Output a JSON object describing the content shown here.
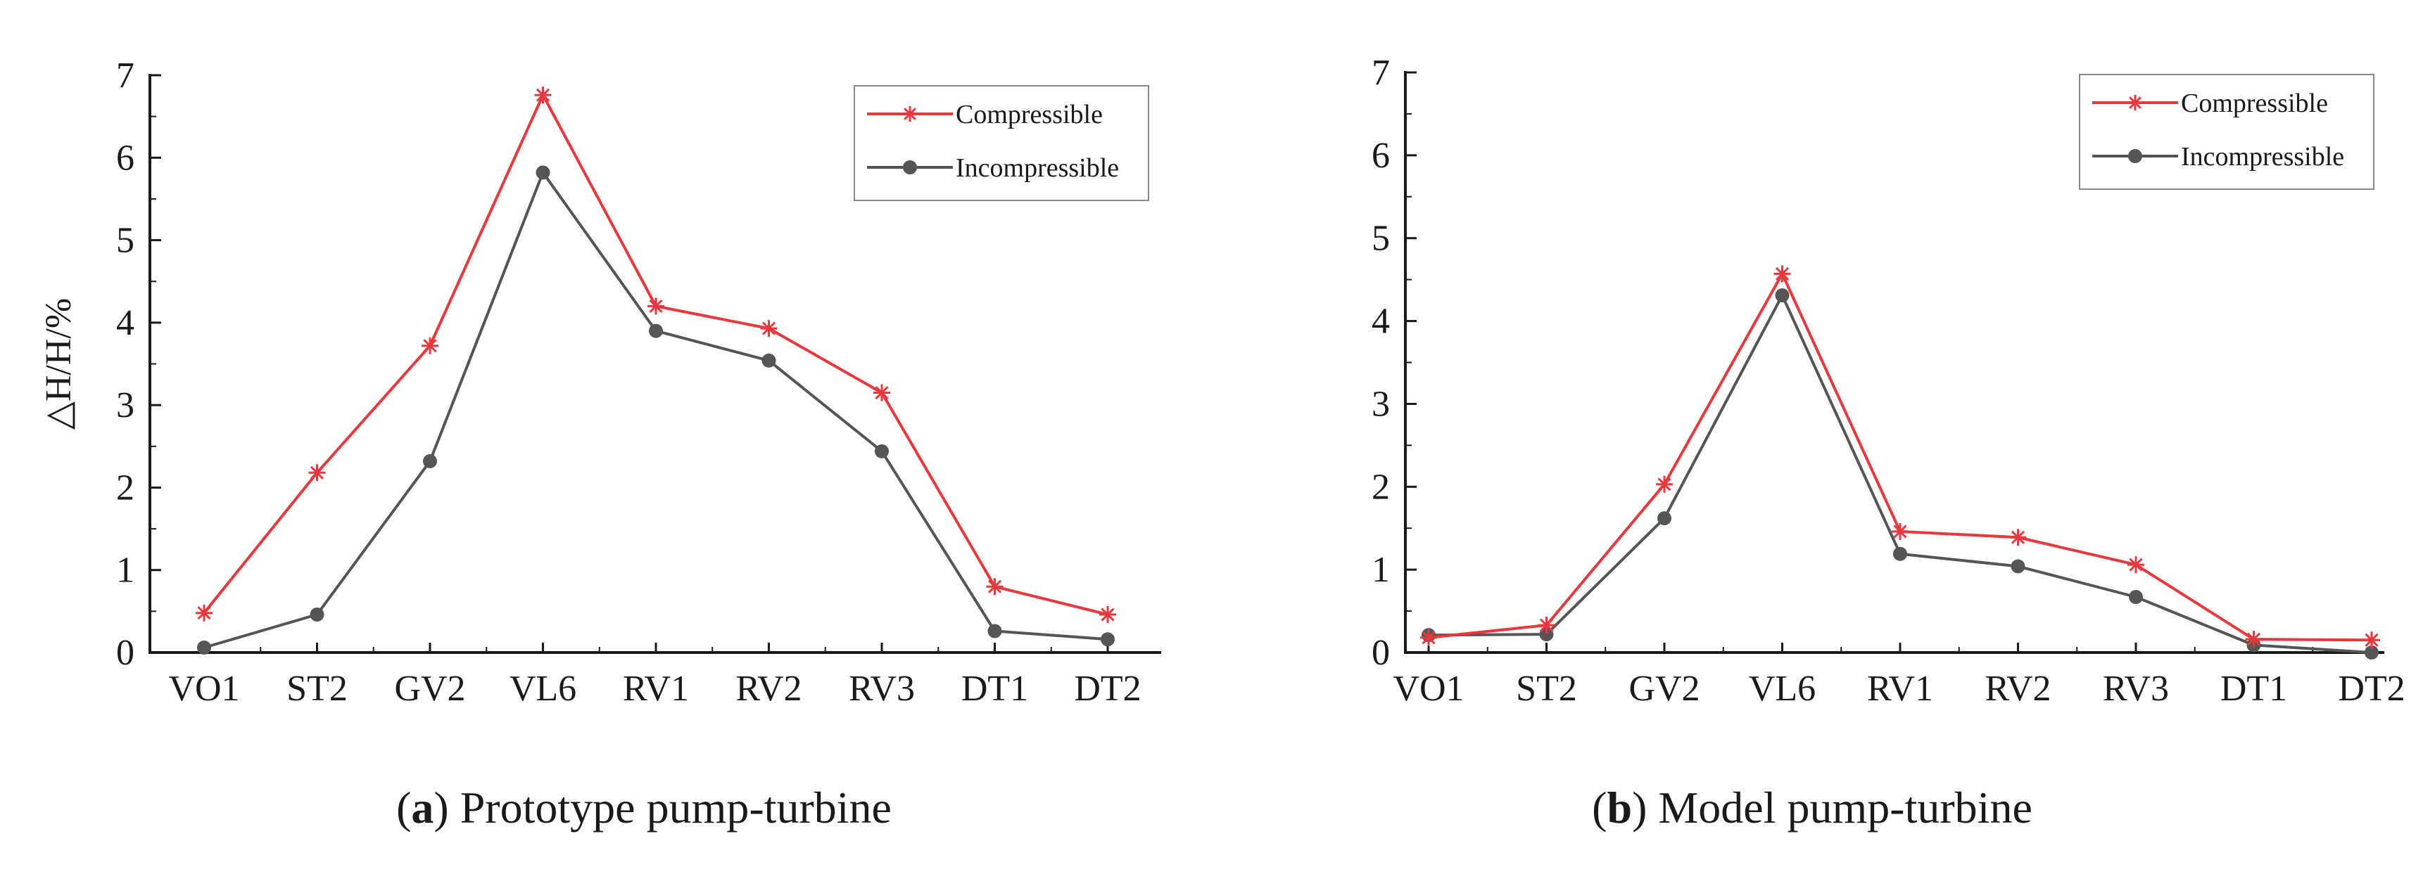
{
  "colors": {
    "compressible": "#e8383d",
    "incompressible": "#555555",
    "axis": "#1a1a1a"
  },
  "chart_data": [
    {
      "type": "line",
      "panel": "a",
      "caption_letter": "a",
      "caption_rest": ") Prototype pump-turbine",
      "caption_open": "(",
      "ylabel": "△H/H/%",
      "ylim": [
        0,
        7
      ],
      "yticks": [
        "0",
        "1",
        "2",
        "3",
        "4",
        "5",
        "6",
        "7"
      ],
      "categories": [
        "VO1",
        "ST2",
        "GV2",
        "VL6",
        "RV1",
        "RV2",
        "RV3",
        "DT1",
        "DT2"
      ],
      "legend_position": "top-right",
      "series": [
        {
          "name": "Compressible",
          "marker": "star",
          "values": [
            0.48,
            2.18,
            3.72,
            6.76,
            4.2,
            3.93,
            3.15,
            0.8,
            0.46
          ]
        },
        {
          "name": "Incompressible",
          "marker": "circle",
          "values": [
            0.06,
            0.46,
            2.32,
            5.82,
            3.9,
            3.54,
            2.44,
            0.26,
            0.16
          ]
        }
      ]
    },
    {
      "type": "line",
      "panel": "b",
      "caption_letter": "b",
      "caption_rest": ") Model pump-turbine",
      "caption_open": "(",
      "ylabel": "",
      "ylim": [
        0,
        7
      ],
      "yticks": [
        "0",
        "1",
        "2",
        "3",
        "4",
        "5",
        "6",
        "7"
      ],
      "categories": [
        "VO1",
        "ST2",
        "GV2",
        "VL6",
        "RV1",
        "RV2",
        "RV3",
        "DT1",
        "DT2"
      ],
      "legend_position": "top-right",
      "series": [
        {
          "name": "Compressible",
          "marker": "star",
          "values": [
            0.18,
            0.33,
            2.03,
            4.57,
            1.46,
            1.39,
            1.06,
            0.16,
            0.15
          ]
        },
        {
          "name": "Incompressible",
          "marker": "circle",
          "values": [
            0.21,
            0.22,
            1.62,
            4.31,
            1.19,
            1.04,
            0.67,
            0.09,
            0.0
          ]
        }
      ]
    }
  ]
}
